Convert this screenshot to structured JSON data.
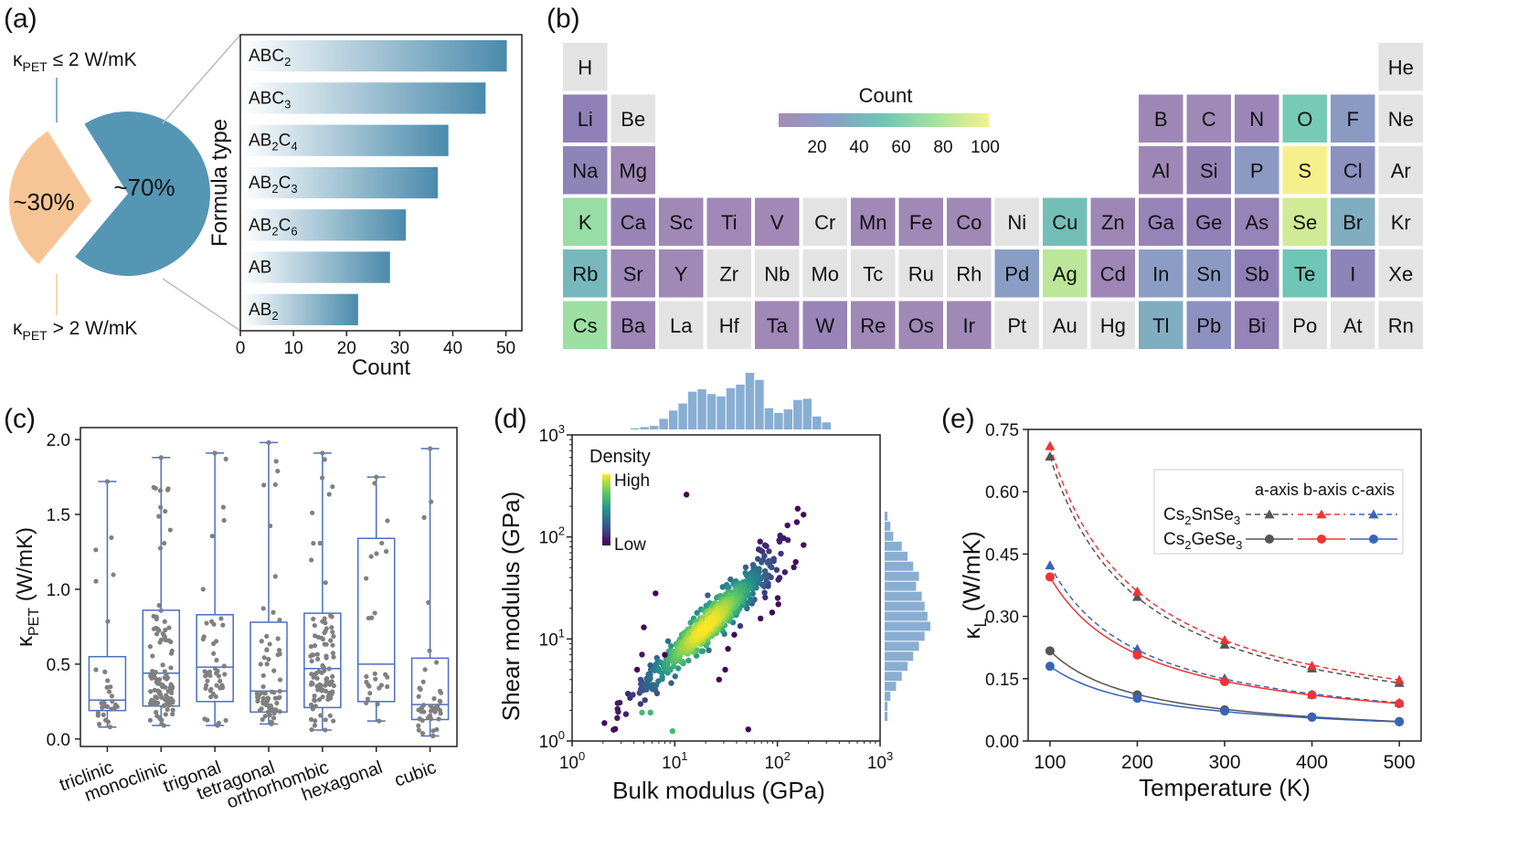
{
  "chart_data": [
    {
      "panel": "(a)",
      "type": "pie",
      "slices": [
        {
          "label": "~70%",
          "value": 70,
          "legend": "κPET ≤ 2 W/mK",
          "color": "#5596b5"
        },
        {
          "label": "~30%",
          "value": 30,
          "legend": "κPET > 2 W/mK",
          "color": "#f7c595"
        }
      ],
      "legend_texts": [
        {
          "base": "κ",
          "sub": "PET",
          "rest": " ≤ 2 W/mK"
        },
        {
          "base": "κ",
          "sub": "PET",
          "rest": " > 2 W/mK"
        }
      ]
    },
    {
      "panel": "(a)",
      "type": "bar",
      "orientation": "horizontal",
      "categories": [
        {
          "base": "ABC",
          "sub": "2",
          "rest": ""
        },
        {
          "base": "ABC",
          "sub": "3",
          "rest": ""
        },
        {
          "base": "AB",
          "sub": "2",
          "rest": "C",
          "sub2": "4"
        },
        {
          "base": "AB",
          "sub": "2",
          "rest": "C",
          "sub2": "3"
        },
        {
          "base": "AB",
          "sub": "2",
          "rest": "C",
          "sub2": "6"
        },
        {
          "base": "AB",
          "sub": "",
          "rest": ""
        },
        {
          "base": "AB",
          "sub": "2",
          "rest": ""
        }
      ],
      "values": [
        50,
        46,
        39,
        37,
        31,
        28,
        22
      ],
      "xlabel": "Count",
      "ylabel": "Formula type",
      "xlim": [
        0,
        53
      ],
      "xticks": [
        0,
        10,
        20,
        30,
        40,
        50
      ],
      "color": "#4a8aab"
    },
    {
      "panel": "(b)",
      "type": "heatmap",
      "title": "Count",
      "colorbar_ticks": [
        20,
        40,
        60,
        80,
        100
      ],
      "colorbar_range": [
        0,
        100
      ],
      "elements": [
        {
          "s": "H",
          "r": 1,
          "c": 1,
          "v": null
        },
        {
          "s": "He",
          "r": 1,
          "c": 18,
          "v": null
        },
        {
          "s": "Li",
          "r": 2,
          "c": 1,
          "v": 20
        },
        {
          "s": "Be",
          "r": 2,
          "c": 2,
          "v": null
        },
        {
          "s": "B",
          "r": 2,
          "c": 13,
          "v": 8
        },
        {
          "s": "C",
          "r": 2,
          "c": 14,
          "v": 6
        },
        {
          "s": "N",
          "r": 2,
          "c": 15,
          "v": 10
        },
        {
          "s": "O",
          "r": 2,
          "c": 16,
          "v": 58
        },
        {
          "s": "F",
          "r": 2,
          "c": 17,
          "v": 32
        },
        {
          "s": "Ne",
          "r": 2,
          "c": 18,
          "v": null
        },
        {
          "s": "Na",
          "r": 3,
          "c": 1,
          "v": 22
        },
        {
          "s": "Mg",
          "r": 3,
          "c": 2,
          "v": 6
        },
        {
          "s": "Al",
          "r": 3,
          "c": 13,
          "v": 8
        },
        {
          "s": "Si",
          "r": 3,
          "c": 14,
          "v": 16
        },
        {
          "s": "P",
          "r": 3,
          "c": 15,
          "v": 32
        },
        {
          "s": "S",
          "r": 3,
          "c": 16,
          "v": 100
        },
        {
          "s": "Cl",
          "r": 3,
          "c": 17,
          "v": 28
        },
        {
          "s": "Ar",
          "r": 3,
          "c": 18,
          "v": null
        },
        {
          "s": "K",
          "r": 4,
          "c": 1,
          "v": 70
        },
        {
          "s": "Ca",
          "r": 4,
          "c": 2,
          "v": 12
        },
        {
          "s": "Sc",
          "r": 4,
          "c": 3,
          "v": 6
        },
        {
          "s": "Ti",
          "r": 4,
          "c": 4,
          "v": 5
        },
        {
          "s": "V",
          "r": 4,
          "c": 5,
          "v": 5
        },
        {
          "s": "Cr",
          "r": 4,
          "c": 6,
          "v": null
        },
        {
          "s": "Mn",
          "r": 4,
          "c": 7,
          "v": 6
        },
        {
          "s": "Fe",
          "r": 4,
          "c": 8,
          "v": 6
        },
        {
          "s": "Co",
          "r": 4,
          "c": 9,
          "v": 6
        },
        {
          "s": "Ni",
          "r": 4,
          "c": 10,
          "v": null
        },
        {
          "s": "Cu",
          "r": 4,
          "c": 11,
          "v": 52
        },
        {
          "s": "Zn",
          "r": 4,
          "c": 12,
          "v": 8
        },
        {
          "s": "Ga",
          "r": 4,
          "c": 13,
          "v": 14
        },
        {
          "s": "Ge",
          "r": 4,
          "c": 14,
          "v": 18
        },
        {
          "s": "As",
          "r": 4,
          "c": 15,
          "v": 14
        },
        {
          "s": "Se",
          "r": 4,
          "c": 16,
          "v": 88
        },
        {
          "s": "Br",
          "r": 4,
          "c": 17,
          "v": 42
        },
        {
          "s": "Kr",
          "r": 4,
          "c": 18,
          "v": null
        },
        {
          "s": "Rb",
          "r": 5,
          "c": 1,
          "v": 48
        },
        {
          "s": "Sr",
          "r": 5,
          "c": 2,
          "v": 8
        },
        {
          "s": "Y",
          "r": 5,
          "c": 3,
          "v": 6
        },
        {
          "s": "Zr",
          "r": 5,
          "c": 4,
          "v": null
        },
        {
          "s": "Nb",
          "r": 5,
          "c": 5,
          "v": null
        },
        {
          "s": "Mo",
          "r": 5,
          "c": 6,
          "v": null
        },
        {
          "s": "Tc",
          "r": 5,
          "c": 7,
          "v": null
        },
        {
          "s": "Ru",
          "r": 5,
          "c": 8,
          "v": null
        },
        {
          "s": "Rh",
          "r": 5,
          "c": 9,
          "v": null
        },
        {
          "s": "Pd",
          "r": 5,
          "c": 10,
          "v": 34
        },
        {
          "s": "Ag",
          "r": 5,
          "c": 11,
          "v": 82
        },
        {
          "s": "Cd",
          "r": 5,
          "c": 12,
          "v": 8
        },
        {
          "s": "In",
          "r": 5,
          "c": 13,
          "v": 34
        },
        {
          "s": "Sn",
          "r": 5,
          "c": 14,
          "v": 32
        },
        {
          "s": "Sb",
          "r": 5,
          "c": 15,
          "v": 20
        },
        {
          "s": "Te",
          "r": 5,
          "c": 16,
          "v": 55
        },
        {
          "s": "I",
          "r": 5,
          "c": 17,
          "v": 22
        },
        {
          "s": "Xe",
          "r": 5,
          "c": 18,
          "v": null
        },
        {
          "s": "Cs",
          "r": 6,
          "c": 1,
          "v": 72
        },
        {
          "s": "Ba",
          "r": 6,
          "c": 2,
          "v": 8
        },
        {
          "s": "La",
          "r": 6,
          "c": 3,
          "v": null
        },
        {
          "s": "Hf",
          "r": 6,
          "c": 4,
          "v": null
        },
        {
          "s": "Ta",
          "r": 6,
          "c": 5,
          "v": 6
        },
        {
          "s": "W",
          "r": 6,
          "c": 6,
          "v": 12
        },
        {
          "s": "Re",
          "r": 6,
          "c": 7,
          "v": 6
        },
        {
          "s": "Os",
          "r": 6,
          "c": 8,
          "v": 6
        },
        {
          "s": "Ir",
          "r": 6,
          "c": 9,
          "v": 6
        },
        {
          "s": "Pt",
          "r": 6,
          "c": 10,
          "v": null
        },
        {
          "s": "Au",
          "r": 6,
          "c": 11,
          "v": null
        },
        {
          "s": "Hg",
          "r": 6,
          "c": 12,
          "v": null
        },
        {
          "s": "Tl",
          "r": 6,
          "c": 13,
          "v": 42
        },
        {
          "s": "Pb",
          "r": 6,
          "c": 14,
          "v": 28
        },
        {
          "s": "Bi",
          "r": 6,
          "c": 15,
          "v": 14
        },
        {
          "s": "Po",
          "r": 6,
          "c": 16,
          "v": null
        },
        {
          "s": "At",
          "r": 6,
          "c": 17,
          "v": null
        },
        {
          "s": "Rn",
          "r": 6,
          "c": 18,
          "v": null
        }
      ]
    },
    {
      "panel": "(c)",
      "type": "box",
      "categories": [
        "triclinic",
        "monoclinic",
        "trigonal",
        "tetragonal",
        "orthorhombic",
        "hexagonal",
        "cubic"
      ],
      "boxes": [
        {
          "min": 0.08,
          "q1": 0.19,
          "median": 0.26,
          "q3": 0.55,
          "max": 1.72,
          "n": 30
        },
        {
          "min": 0.09,
          "q1": 0.22,
          "median": 0.44,
          "q3": 0.86,
          "max": 1.88,
          "n": 110
        },
        {
          "min": 0.09,
          "q1": 0.25,
          "median": 0.48,
          "q3": 0.83,
          "max": 1.91,
          "n": 45
        },
        {
          "min": 0.1,
          "q1": 0.18,
          "median": 0.32,
          "q3": 0.78,
          "max": 1.98,
          "n": 65
        },
        {
          "min": 0.06,
          "q1": 0.21,
          "median": 0.47,
          "q3": 0.84,
          "max": 1.91,
          "n": 100
        },
        {
          "min": 0.12,
          "q1": 0.25,
          "median": 0.5,
          "q3": 1.34,
          "max": 1.75,
          "n": 25
        },
        {
          "min": 0.02,
          "q1": 0.13,
          "median": 0.23,
          "q3": 0.54,
          "max": 1.94,
          "n": 45
        }
      ],
      "ylabel": {
        "base": "κ",
        "sub": "PET",
        "rest": " (W/mK)"
      },
      "ylim": [
        -0.05,
        2.08
      ],
      "yticks": [
        0.0,
        0.5,
        1.0,
        1.5,
        2.0
      ],
      "yticklabels": [
        "0.0",
        "0.5",
        "1.0",
        "1.5",
        "2.0"
      ],
      "color": "#4a6fc0"
    },
    {
      "panel": "(d)",
      "type": "scatter",
      "xscale": "log",
      "yscale": "log",
      "xlim": [
        1,
        1000
      ],
      "ylim": [
        1,
        1000
      ],
      "xlabel": "Bulk modulus (GPa)",
      "ylabel": "Shear modulus (GPa)",
      "xticklabels": [
        {
          "b": "10",
          "e": "0"
        },
        {
          "b": "10",
          "e": "1"
        },
        {
          "b": "10",
          "e": "2"
        },
        {
          "b": "10",
          "e": "3"
        }
      ],
      "yticklabels": [
        {
          "b": "10",
          "e": "0"
        },
        {
          "b": "10",
          "e": "1"
        },
        {
          "b": "10",
          "e": "2"
        },
        {
          "b": "10",
          "e": "3"
        }
      ],
      "colorbar_title": "Density",
      "colorbar_high": "High",
      "colorbar_low": "Low",
      "density_model": {
        "log_slope": 0.92,
        "log_intercept": -0.08,
        "center_logx": 1.35,
        "n_points": 700
      },
      "outliers": [
        [
          13,
          260
        ],
        [
          6.5,
          28
        ],
        [
          5,
          13
        ],
        [
          4.3,
          5
        ],
        [
          5.8,
          1.9
        ],
        [
          4.8,
          1.9
        ],
        [
          9.5,
          1.25
        ],
        [
          52,
          1.3
        ],
        [
          8,
          7
        ],
        [
          31,
          5
        ],
        [
          27,
          4
        ],
        [
          38,
          11
        ],
        [
          33,
          8
        ]
      ],
      "top_histogram": [
        1,
        2,
        3,
        9,
        16,
        22,
        32,
        34,
        30,
        28,
        35,
        38,
        48,
        42,
        18,
        14,
        17,
        25,
        26,
        11,
        6
      ],
      "right_histogram": [
        1,
        2,
        3,
        6,
        8,
        10,
        12,
        11,
        13,
        14,
        15,
        16,
        14,
        12,
        10,
        8,
        6,
        4,
        2,
        1,
        1
      ]
    },
    {
      "panel": "(e)",
      "type": "line",
      "x": [
        100,
        200,
        300,
        400,
        500
      ],
      "xlim": [
        75,
        525
      ],
      "ylim": [
        0,
        0.75
      ],
      "xticks": [
        100,
        200,
        300,
        400,
        500
      ],
      "yticks": [
        0.0,
        0.15,
        0.3,
        0.45,
        0.6,
        0.75
      ],
      "yticklabels": [
        "0.00",
        "0.15",
        "0.30",
        "0.45",
        "0.60",
        "0.75"
      ],
      "xlabel": "Temperature (K)",
      "ylabel": {
        "base": "κ",
        "sub": "L",
        "rest": " (W/mK)"
      },
      "legend_header": "a-axis b-axis c-axis",
      "legend_rows": [
        {
          "base": "Cs",
          "s1": "2",
          "mid": "SnSe",
          "s2": "3"
        },
        {
          "base": "Cs",
          "s1": "2",
          "mid": "GeSe",
          "s2": "3"
        }
      ],
      "series": [
        {
          "name": "Cs2SnSe3 a-axis",
          "values": [
            0.685,
            0.347,
            0.232,
            0.175,
            0.14
          ],
          "color": "#555555",
          "marker": "triangle",
          "dash": true
        },
        {
          "name": "Cs2SnSe3 b-axis",
          "values": [
            0.71,
            0.36,
            0.243,
            0.181,
            0.147
          ],
          "color": "#ee3535",
          "marker": "triangle",
          "dash": true
        },
        {
          "name": "Cs2SnSe3 c-axis",
          "values": [
            0.423,
            0.222,
            0.151,
            0.112,
            0.092
          ],
          "color": "#3a63b8",
          "marker": "triangle",
          "dash": true
        },
        {
          "name": "Cs2GeSe3 a-axis",
          "values": [
            0.217,
            0.111,
            0.075,
            0.058,
            0.047
          ],
          "color": "#555555",
          "marker": "circle",
          "dash": false
        },
        {
          "name": "Cs2GeSe3 b-axis",
          "values": [
            0.395,
            0.207,
            0.143,
            0.111,
            0.09
          ],
          "color": "#ee3535",
          "marker": "circle",
          "dash": false
        },
        {
          "name": "Cs2GeSe3 c-axis",
          "values": [
            0.18,
            0.103,
            0.072,
            0.057,
            0.046
          ],
          "color": "#3a63b8",
          "marker": "circle",
          "dash": false
        }
      ]
    }
  ],
  "panel_labels": [
    "(a)",
    "(b)",
    "(c)",
    "(d)",
    "(e)"
  ]
}
